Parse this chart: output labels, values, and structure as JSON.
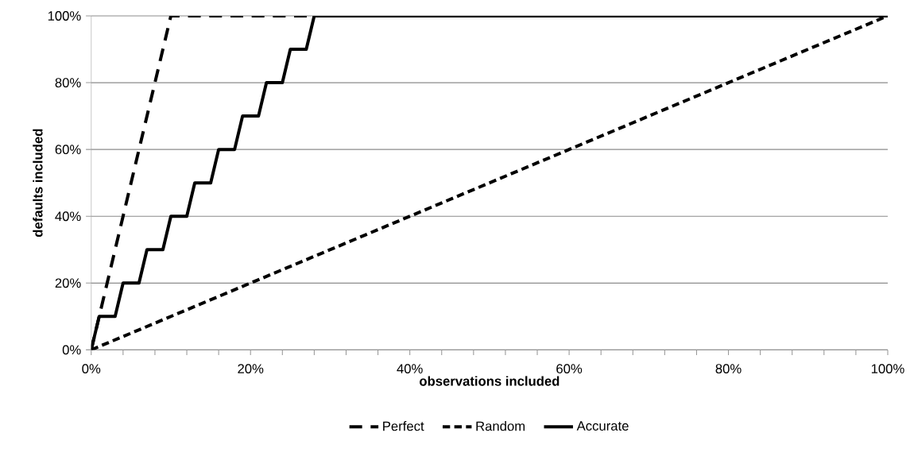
{
  "chart_data": {
    "type": "line",
    "xlabel": "observations included",
    "ylabel": "defaults included",
    "xlim": [
      0,
      100
    ],
    "ylim": [
      0,
      100
    ],
    "xticks": [
      {
        "value": 0,
        "label": "0%"
      },
      {
        "value": 4,
        "label": null
      },
      {
        "value": 8,
        "label": null
      },
      {
        "value": 12,
        "label": null
      },
      {
        "value": 16,
        "label": null
      },
      {
        "value": 20,
        "label": "20%"
      },
      {
        "value": 24,
        "label": null
      },
      {
        "value": 28,
        "label": null
      },
      {
        "value": 32,
        "label": null
      },
      {
        "value": 36,
        "label": null
      },
      {
        "value": 40,
        "label": "40%"
      },
      {
        "value": 44,
        "label": null
      },
      {
        "value": 48,
        "label": null
      },
      {
        "value": 52,
        "label": null
      },
      {
        "value": 56,
        "label": null
      },
      {
        "value": 60,
        "label": "60%"
      },
      {
        "value": 64,
        "label": null
      },
      {
        "value": 68,
        "label": null
      },
      {
        "value": 72,
        "label": null
      },
      {
        "value": 76,
        "label": null
      },
      {
        "value": 80,
        "label": "80%"
      },
      {
        "value": 84,
        "label": null
      },
      {
        "value": 88,
        "label": null
      },
      {
        "value": 92,
        "label": null
      },
      {
        "value": 96,
        "label": null
      },
      {
        "value": 100,
        "label": "100%"
      }
    ],
    "yticks": [
      {
        "value": 0,
        "label": "0%"
      },
      {
        "value": 20,
        "label": "20%"
      },
      {
        "value": 40,
        "label": "40%"
      },
      {
        "value": 60,
        "label": "60%"
      },
      {
        "value": 80,
        "label": "80%"
      },
      {
        "value": 100,
        "label": "100%"
      }
    ],
    "grid": "y",
    "legend": "bottom",
    "marker": "none",
    "series": [
      {
        "name": "Perfect",
        "color": "#000000",
        "line_style": "dashed",
        "x": [
          0,
          10,
          100
        ],
        "values": [
          0,
          100,
          100
        ]
      },
      {
        "name": "Random",
        "color": "#000000",
        "line_style": "dotted",
        "x": [
          0,
          100
        ],
        "values": [
          0,
          100
        ]
      },
      {
        "name": "Accurate",
        "color": "#000000",
        "line_style": "solid",
        "x": [
          0,
          1,
          3,
          4,
          6,
          7,
          9,
          10,
          12,
          13,
          15,
          16,
          18,
          19,
          21,
          22,
          24,
          25,
          27,
          28,
          100
        ],
        "values": [
          0,
          10,
          10,
          20,
          20,
          30,
          30,
          40,
          40,
          50,
          50,
          60,
          60,
          70,
          70,
          80,
          80,
          90,
          90,
          100,
          100
        ]
      }
    ]
  }
}
